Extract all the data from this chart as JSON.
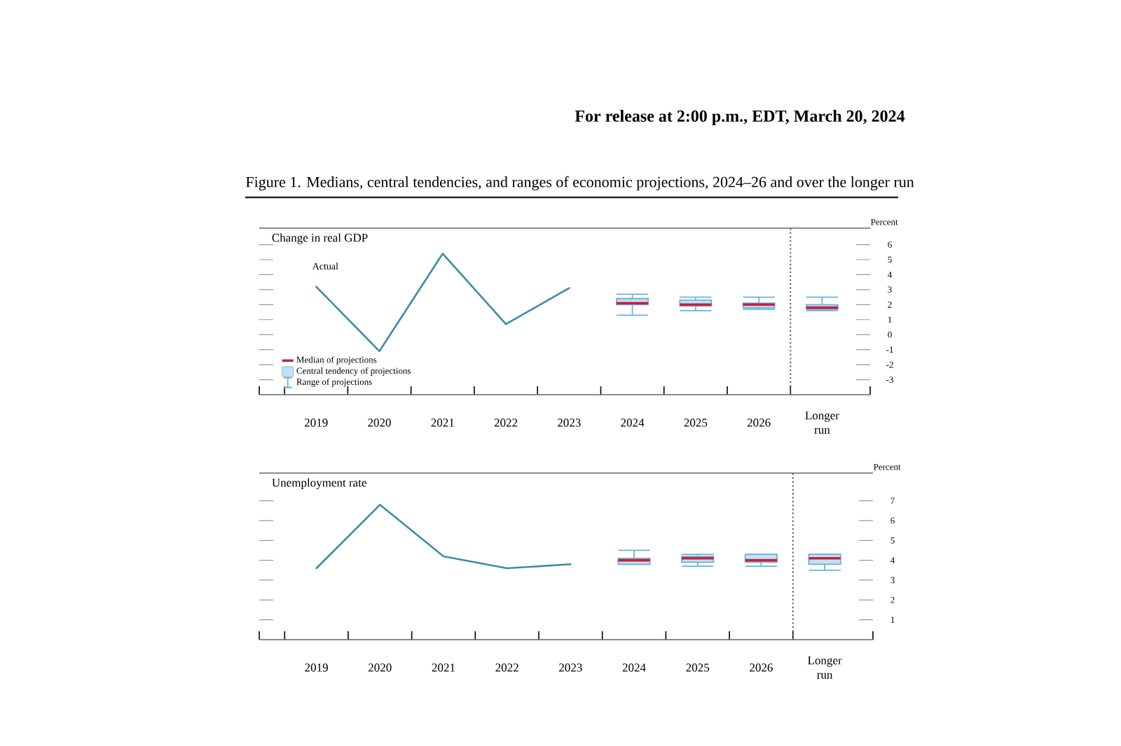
{
  "chart_data": [
    {
      "type": "line",
      "title": "Change in real GDP",
      "ylabel": "Percent",
      "categories": [
        "2019",
        "2020",
        "2021",
        "2022",
        "2023",
        "2024",
        "2025",
        "2026",
        "Longer run"
      ],
      "series": [
        {
          "name": "Actual",
          "color": "#3f8ba6",
          "values": [
            3.2,
            -1.1,
            5.4,
            0.7,
            3.1,
            null,
            null,
            null,
            null
          ]
        },
        {
          "type": "box",
          "color": "#69b3dd",
          "boxes": [
            null,
            null,
            null,
            null,
            null,
            {
              "low": 1.3,
              "q1": 2.0,
              "median": 2.1,
              "q3": 2.4,
              "high": 2.7
            },
            {
              "low": 1.6,
              "q1": 1.9,
              "median": 2.0,
              "q3": 2.3,
              "high": 2.5
            },
            {
              "low": 1.7,
              "q1": 1.8,
              "median": 2.0,
              "q3": 2.1,
              "high": 2.5
            },
            {
              "low": 1.6,
              "q1": 1.7,
              "median": 1.8,
              "q3": 2.0,
              "high": 2.5
            }
          ]
        }
      ],
      "ylim": [
        -4,
        7.1
      ],
      "yticks": [
        -3,
        -2,
        -1,
        0,
        1,
        2,
        3,
        4,
        5,
        6
      ],
      "annotations": [
        "For release at 2:00 p.m., EDT, March 20, 2024",
        "Figure 1. Medians, central tendencies, and ranges of economic projections, 2024–26 and over the longer run",
        "Median of projections",
        "Central tendency of projections",
        "Range of projections"
      ]
    },
    {
      "type": "line",
      "title": "Unemployment rate",
      "ylabel": "Percent",
      "categories": [
        "2019",
        "2020",
        "2021",
        "2022",
        "2023",
        "2024",
        "2025",
        "2026",
        "Longer run"
      ],
      "series": [
        {
          "color": "#3f8ba6",
          "values": [
            3.6,
            6.8,
            4.2,
            3.6,
            3.8,
            null,
            null,
            null,
            null
          ]
        },
        {
          "type": "box",
          "color": "#69b3dd",
          "boxes": [
            null,
            null,
            null,
            null,
            null,
            {
              "low": 3.8,
              "q1": 3.8,
              "median": 4.0,
              "q3": 4.1,
              "high": 4.5
            },
            {
              "low": 3.7,
              "q1": 3.9,
              "median": 4.1,
              "q3": 4.2,
              "high": 4.3
            },
            {
              "low": 3.7,
              "q1": 3.9,
              "median": 4.0,
              "q3": 4.3,
              "high": 4.3
            },
            {
              "low": 3.5,
              "q1": 3.8,
              "median": 4.1,
              "q3": 4.3,
              "high": 4.3
            }
          ]
        }
      ],
      "ylim": [
        0,
        8.4
      ],
      "yticks": [
        1,
        2,
        3,
        4,
        5,
        6,
        7
      ]
    }
  ]
}
